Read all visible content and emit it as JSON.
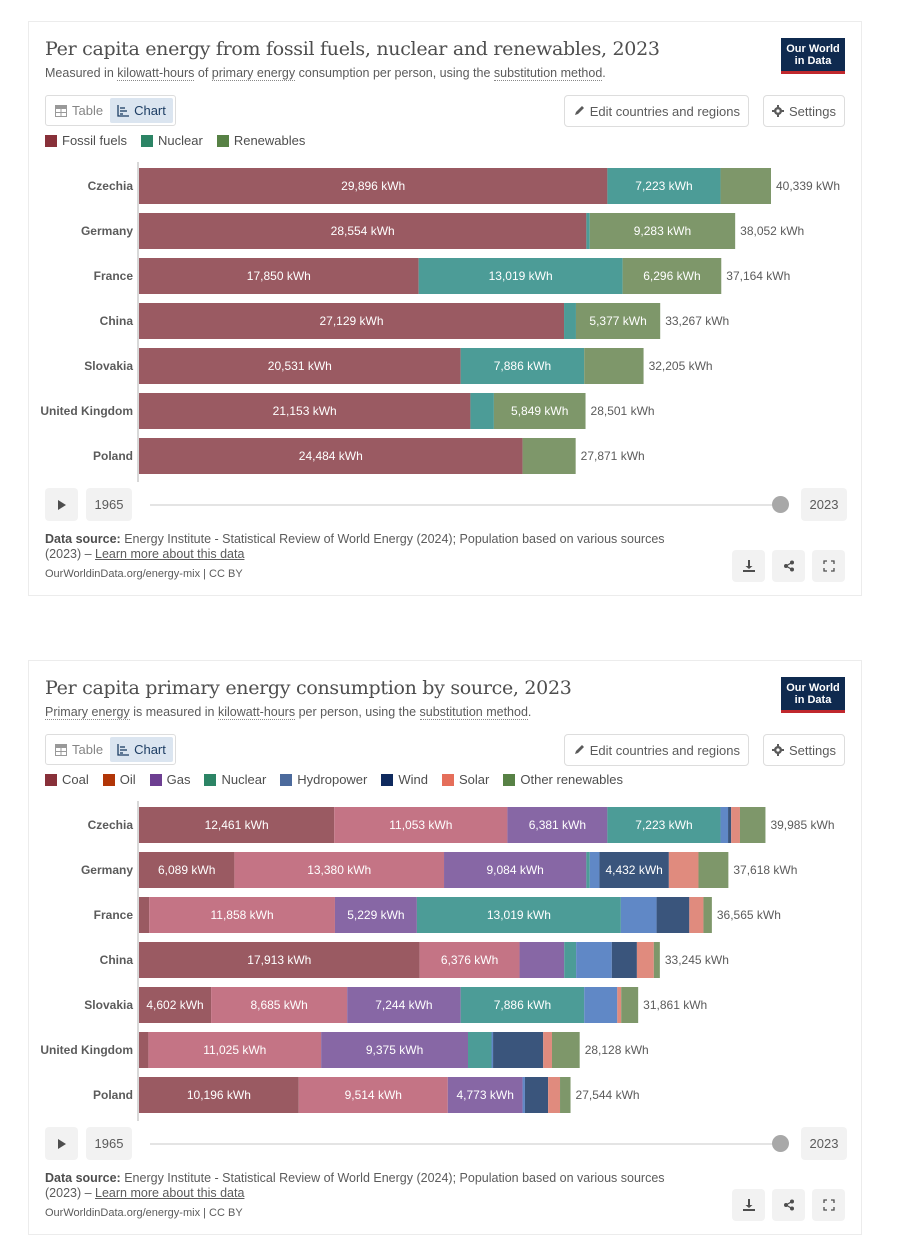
{
  "charts": [
    {
      "title": "Per capita energy from fossil fuels, nuclear and renewables, 2023",
      "subtitle_parts": [
        "Measured in ",
        "kilowatt-hours",
        " of ",
        "primary energy",
        " consumption per person, using the ",
        "substitution method",
        "."
      ],
      "logo": {
        "line1": "Our World",
        "line2": "in Data"
      },
      "tabs": {
        "table": "Table",
        "chart": "Chart",
        "active": "chart"
      },
      "buttons": {
        "edit": "Edit countries and regions",
        "settings": "Settings"
      },
      "timeline": {
        "start": "1965",
        "end": "2023",
        "selected": "2023"
      },
      "source": {
        "label": "Data source:",
        "text": " Energy Institute - Statistical Review of World Energy (2024); Population based on various sources (2023) – ",
        "link": "Learn more about this data"
      },
      "url": "OurWorldinData.org/energy-mix | CC BY"
    },
    {
      "title": "Per capita primary energy consumption by source, 2023",
      "subtitle_parts": [
        "",
        "Primary energy",
        " is measured in ",
        "kilowatt-hours",
        " per person, using the ",
        "substitution method",
        "."
      ],
      "logo": {
        "line1": "Our World",
        "line2": "in Data"
      },
      "tabs": {
        "table": "Table",
        "chart": "Chart",
        "active": "chart"
      },
      "buttons": {
        "edit": "Edit countries and regions",
        "settings": "Settings"
      },
      "timeline": {
        "start": "1965",
        "end": "2023",
        "selected": "2023"
      },
      "source": {
        "label": "Data source:",
        "text": " Energy Institute - Statistical Review of World Energy (2024); Population based on various sources (2023) – ",
        "link": "Learn more about this data"
      },
      "url": "OurWorldinData.org/energy-mix | CC BY"
    }
  ],
  "chart_data": [
    {
      "type": "bar",
      "orientation": "horizontal-stacked",
      "title": "Per capita energy from fossil fuels, nuclear and renewables, 2023",
      "unit": "kWh",
      "categories": [
        "Czechia",
        "Germany",
        "France",
        "China",
        "Slovakia",
        "United Kingdom",
        "Poland"
      ],
      "series": [
        {
          "name": "Fossil fuels",
          "color": "#9a5a62",
          "legend_color": "#883039",
          "values": [
            29896,
            28554,
            17850,
            27129,
            20531,
            21153,
            24484
          ],
          "labeled": [
            true,
            true,
            true,
            true,
            true,
            true,
            true
          ]
        },
        {
          "name": "Nuclear",
          "color": "#4c9c97",
          "legend_color": "#2c8465",
          "values": [
            7223,
            215,
            13019,
            761,
            7886,
            1499,
            0
          ],
          "labeled": [
            true,
            false,
            true,
            false,
            true,
            false,
            false
          ]
        },
        {
          "name": "Renewables",
          "color": "#7e976a",
          "legend_color": "#578145",
          "values": [
            3220,
            9283,
            6296,
            5377,
            3788,
            5849,
            3387
          ],
          "labeled": [
            false,
            true,
            true,
            true,
            false,
            true,
            false
          ]
        }
      ],
      "totals": [
        40339,
        38052,
        37164,
        33267,
        32205,
        28501,
        27871
      ],
      "legend": "top-left",
      "grid": false
    },
    {
      "type": "bar",
      "orientation": "horizontal-stacked",
      "title": "Per capita primary energy consumption by source, 2023",
      "unit": "kWh",
      "categories": [
        "Czechia",
        "Germany",
        "France",
        "China",
        "Slovakia",
        "United Kingdom",
        "Poland"
      ],
      "series": [
        {
          "name": "Coal",
          "color": "#9a5a62",
          "legend_color": "#883039",
          "values": [
            12461,
            6089,
            650,
            17913,
            4602,
            600,
            10196
          ],
          "labeled": [
            true,
            true,
            false,
            true,
            true,
            false,
            true
          ]
        },
        {
          "name": "Oil",
          "color": "#c47485",
          "legend_color": "#b13507",
          "values": [
            11053,
            13380,
            11858,
            6376,
            8685,
            11025,
            9514
          ],
          "labeled": [
            true,
            true,
            true,
            true,
            true,
            true,
            true
          ]
        },
        {
          "name": "Gas",
          "color": "#8767a5",
          "legend_color": "#6d3e91",
          "values": [
            6381,
            9084,
            5229,
            2850,
            7244,
            9375,
            4773
          ],
          "labeled": [
            true,
            true,
            true,
            false,
            true,
            true,
            true
          ]
        },
        {
          "name": "Nuclear",
          "color": "#4c9c97",
          "legend_color": "#2c8465",
          "values": [
            7223,
            215,
            13019,
            761,
            7886,
            1499,
            0
          ],
          "labeled": [
            true,
            false,
            true,
            false,
            true,
            false,
            false
          ]
        },
        {
          "name": "Hydropower",
          "color": "#6088c6",
          "legend_color": "#4c6a9c",
          "values": [
            480,
            620,
            2280,
            2280,
            2100,
            100,
            150
          ],
          "labeled": [
            false,
            false,
            false,
            false,
            false,
            false,
            false
          ]
        },
        {
          "name": "Wind",
          "color": "#3a557c",
          "legend_color": "#0f2a5e",
          "values": [
            200,
            4432,
            2090,
            1600,
            10,
            3200,
            1480
          ],
          "labeled": [
            false,
            true,
            false,
            false,
            false,
            false,
            false
          ]
        },
        {
          "name": "Solar",
          "color": "#e08b7e",
          "legend_color": "#e56e5a",
          "values": [
            560,
            1890,
            900,
            1080,
            250,
            560,
            760
          ],
          "labeled": [
            false,
            false,
            false,
            false,
            false,
            false,
            false
          ]
        },
        {
          "name": "Other renewables",
          "color": "#7e976a",
          "legend_color": "#578145",
          "values": [
            1627,
            1908,
            539,
            385,
            1084,
            1769,
            671
          ],
          "labeled": [
            false,
            false,
            false,
            false,
            false,
            false,
            false
          ]
        }
      ],
      "totals": [
        39985,
        37618,
        36565,
        33245,
        31861,
        28128,
        27544
      ],
      "legend": "top-left",
      "grid": false
    }
  ]
}
